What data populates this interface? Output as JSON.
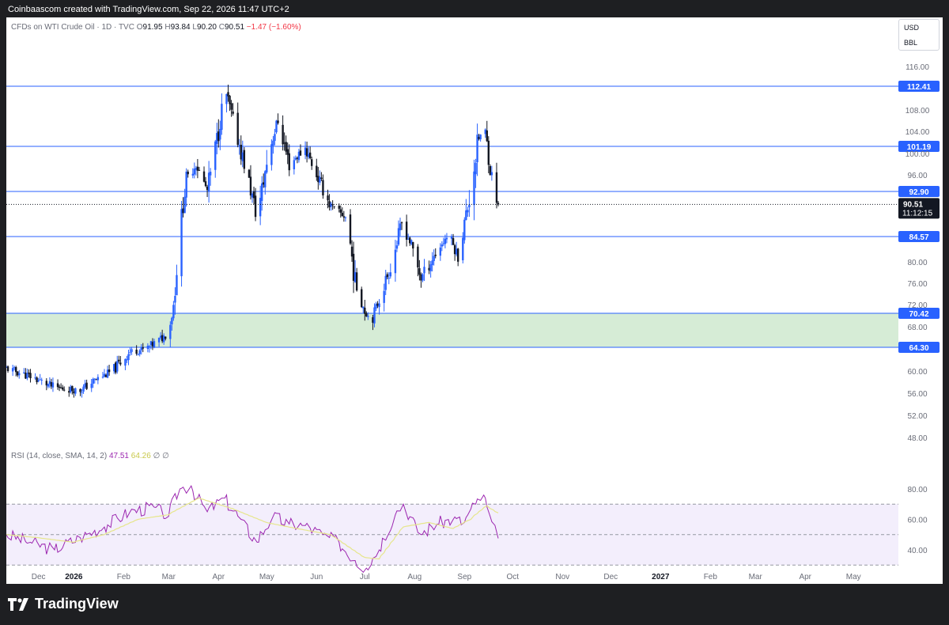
{
  "header": {
    "attribution": "Coinbaascom created with TradingView.com, Sep 22, 2026 11:47 UTC+2"
  },
  "legend": {
    "symbol": "CFDs on WTI Crude Oil · 1D · TVC",
    "o_label": "O",
    "o_value": "91.95",
    "h_label": "H",
    "h_value": "93.84",
    "l_label": "L",
    "l_value": "90.20",
    "c_label": "C",
    "c_value": "90.51",
    "change": "−1.47 (−1.60%)"
  },
  "units": {
    "currency": "USD",
    "unit": "BBL"
  },
  "rsi_legend": {
    "label": "RSI (14, close, SMA, 14, 2)",
    "rsi_value": "47.51",
    "sma_value": "64.26",
    "extra": "∅ ∅"
  },
  "brand": {
    "name": "TradingView"
  },
  "colors": {
    "up": "#2962ff",
    "down": "#131722",
    "hline": "#2962ff",
    "zone": "#d6ecd6",
    "rsi": "#9c27b0",
    "rsi_sma": "#e6e68c",
    "rsi_band": "#f3eefc"
  },
  "chart_data": [
    {
      "type": "candlestick",
      "title": "CFDs on WTI Crude Oil · 1D · TVC",
      "y_ticks": [
        "116.00",
        "108.00",
        "104.00",
        "100.00",
        "96.00",
        "80.00",
        "76.00",
        "72.00",
        "68.00",
        "60.00",
        "56.00",
        "52.00",
        "48.00"
      ],
      "x_ticks": [
        "Dec",
        "2026",
        "Feb",
        "Mar",
        "Apr",
        "May",
        "Jun",
        "Jul",
        "Aug",
        "Sep",
        "Oct",
        "Nov",
        "Dec",
        "2027",
        "Feb",
        "Mar",
        "Apr",
        "May"
      ],
      "x_range": [
        "2025-11-20",
        "2027-05-25"
      ],
      "horizontal_levels": [
        {
          "label": "112.41",
          "value": 112.41
        },
        {
          "label": "101.19",
          "value": 101.19
        },
        {
          "label": "92.90",
          "value": 92.9
        },
        {
          "label": "84.57",
          "value": 84.57
        },
        {
          "label": "70.42",
          "value": 70.42
        },
        {
          "label": "64.30",
          "value": 64.3
        }
      ],
      "zone": {
        "from": 64.3,
        "to": 70.42
      },
      "last_price": {
        "value": 90.51,
        "label": "90.51",
        "countdown": "11:12:15"
      },
      "path_points": [
        {
          "date": "2025-11-20",
          "close": 60.5
        },
        {
          "date": "2025-12-05",
          "close": 59.0
        },
        {
          "date": "2025-12-20",
          "close": 57.0
        },
        {
          "date": "2026-01-05",
          "close": 56.5
        },
        {
          "date": "2026-01-15",
          "close": 58.5
        },
        {
          "date": "2026-01-25",
          "close": 60.0
        },
        {
          "date": "2026-02-05",
          "close": 63.5
        },
        {
          "date": "2026-02-15",
          "close": 64.0
        },
        {
          "date": "2026-02-25",
          "close": 66.0
        },
        {
          "date": "2026-03-01",
          "close": 67.0
        },
        {
          "date": "2026-03-04",
          "close": 72.0
        },
        {
          "date": "2026-03-08",
          "close": 86.0
        },
        {
          "date": "2026-03-12",
          "close": 95.0
        },
        {
          "date": "2026-03-18",
          "close": 98.0
        },
        {
          "date": "2026-03-25",
          "close": 93.0
        },
        {
          "date": "2026-04-01",
          "close": 104.0
        },
        {
          "date": "2026-04-05",
          "close": 112.0
        },
        {
          "date": "2026-04-10",
          "close": 106.0
        },
        {
          "date": "2026-04-18",
          "close": 97.0
        },
        {
          "date": "2026-04-25",
          "close": 88.0
        },
        {
          "date": "2026-05-02",
          "close": 100.0
        },
        {
          "date": "2026-05-08",
          "close": 106.0
        },
        {
          "date": "2026-05-15",
          "close": 98.0
        },
        {
          "date": "2026-05-25",
          "close": 101.0
        },
        {
          "date": "2026-06-01",
          "close": 96.0
        },
        {
          "date": "2026-06-10",
          "close": 90.0
        },
        {
          "date": "2026-06-20",
          "close": 88.0
        },
        {
          "date": "2026-06-25",
          "close": 76.0
        },
        {
          "date": "2026-07-01",
          "close": 71.0
        },
        {
          "date": "2026-07-05",
          "close": 69.0
        },
        {
          "date": "2026-07-10",
          "close": 73.0
        },
        {
          "date": "2026-07-18",
          "close": 80.0
        },
        {
          "date": "2026-07-24",
          "close": 87.0
        },
        {
          "date": "2026-07-30",
          "close": 83.0
        },
        {
          "date": "2026-08-05",
          "close": 77.0
        },
        {
          "date": "2026-08-15",
          "close": 82.0
        },
        {
          "date": "2026-08-22",
          "close": 85.0
        },
        {
          "date": "2026-08-28",
          "close": 81.0
        },
        {
          "date": "2026-09-03",
          "close": 90.0
        },
        {
          "date": "2026-09-10",
          "close": 103.0
        },
        {
          "date": "2026-09-14",
          "close": 104.0
        },
        {
          "date": "2026-09-17",
          "close": 97.0
        },
        {
          "date": "2026-09-22",
          "close": 90.51
        }
      ]
    },
    {
      "type": "line",
      "title": "RSI (14, close, SMA, 14, 2)",
      "y_ticks": [
        "80.00",
        "60.00",
        "40.00"
      ],
      "levels": [
        70,
        50,
        30
      ],
      "series": [
        {
          "name": "RSI",
          "points": [
            {
              "date": "2025-11-20",
              "value": 50
            },
            {
              "date": "2025-12-05",
              "value": 45
            },
            {
              "date": "2025-12-20",
              "value": 40
            },
            {
              "date": "2026-01-05",
              "value": 48
            },
            {
              "date": "2026-01-20",
              "value": 55
            },
            {
              "date": "2026-02-05",
              "value": 65
            },
            {
              "date": "2026-02-20",
              "value": 68
            },
            {
              "date": "2026-03-01",
              "value": 62
            },
            {
              "date": "2026-03-08",
              "value": 80
            },
            {
              "date": "2026-03-15",
              "value": 82
            },
            {
              "date": "2026-03-25",
              "value": 65
            },
            {
              "date": "2026-04-05",
              "value": 74
            },
            {
              "date": "2026-04-15",
              "value": 60
            },
            {
              "date": "2026-04-25",
              "value": 45
            },
            {
              "date": "2026-05-05",
              "value": 62
            },
            {
              "date": "2026-05-15",
              "value": 57
            },
            {
              "date": "2026-05-25",
              "value": 56
            },
            {
              "date": "2026-06-05",
              "value": 50
            },
            {
              "date": "2026-06-15",
              "value": 45
            },
            {
              "date": "2026-06-25",
              "value": 33
            },
            {
              "date": "2026-07-02",
              "value": 28
            },
            {
              "date": "2026-07-10",
              "value": 40
            },
            {
              "date": "2026-07-20",
              "value": 63
            },
            {
              "date": "2026-07-25",
              "value": 70
            },
            {
              "date": "2026-08-05",
              "value": 50
            },
            {
              "date": "2026-08-15",
              "value": 57
            },
            {
              "date": "2026-08-25",
              "value": 60
            },
            {
              "date": "2026-09-01",
              "value": 58
            },
            {
              "date": "2026-09-08",
              "value": 70
            },
            {
              "date": "2026-09-13",
              "value": 76
            },
            {
              "date": "2026-09-17",
              "value": 62
            },
            {
              "date": "2026-09-22",
              "value": 47.51
            }
          ]
        },
        {
          "name": "SMA",
          "points": [
            {
              "date": "2025-11-20",
              "value": 50
            },
            {
              "date": "2025-12-10",
              "value": 48
            },
            {
              "date": "2026-01-01",
              "value": 45
            },
            {
              "date": "2026-01-20",
              "value": 50
            },
            {
              "date": "2026-02-10",
              "value": 60
            },
            {
              "date": "2026-03-01",
              "value": 63
            },
            {
              "date": "2026-03-20",
              "value": 74
            },
            {
              "date": "2026-04-10",
              "value": 67
            },
            {
              "date": "2026-05-01",
              "value": 58
            },
            {
              "date": "2026-05-20",
              "value": 54
            },
            {
              "date": "2026-06-10",
              "value": 50
            },
            {
              "date": "2026-07-01",
              "value": 35
            },
            {
              "date": "2026-07-10",
              "value": 34
            },
            {
              "date": "2026-07-25",
              "value": 55
            },
            {
              "date": "2026-08-10",
              "value": 58
            },
            {
              "date": "2026-08-25",
              "value": 54
            },
            {
              "date": "2026-09-05",
              "value": 60
            },
            {
              "date": "2026-09-15",
              "value": 69
            },
            {
              "date": "2026-09-22",
              "value": 64.26
            }
          ]
        }
      ]
    }
  ]
}
